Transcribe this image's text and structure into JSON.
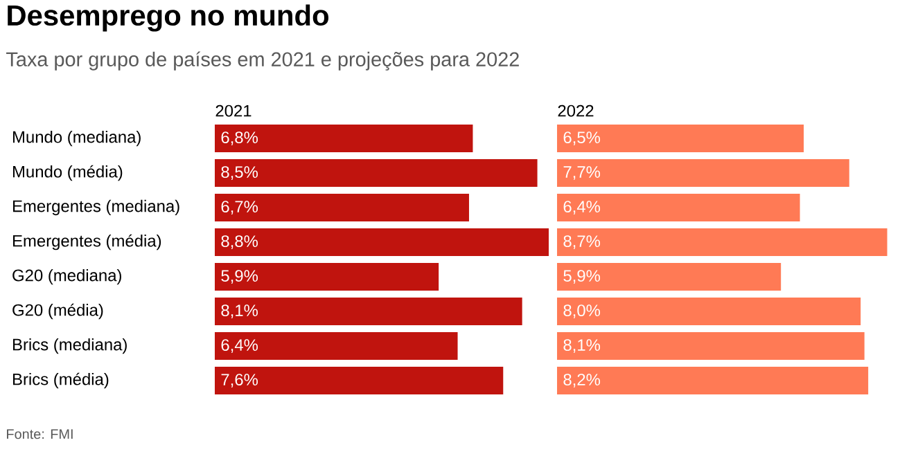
{
  "chart_data": [
    {
      "type": "bar",
      "orientation": "horizontal",
      "title": "Desemprego no mundo",
      "subtitle": "Taxa por grupo de países em 2021 e projeções para 2022",
      "categories": [
        "Mundo (mediana)",
        "Mundo (média)",
        "Emergentes (mediana)",
        "Emergentes (média)",
        "G20 (mediana)",
        "G20 (média)",
        "Brics (mediana)",
        "Brics (média)"
      ],
      "series": [
        {
          "name": "2021",
          "color": "#c0140e",
          "values": [
            6.8,
            8.5,
            6.7,
            8.8,
            5.9,
            8.1,
            6.4,
            7.6
          ],
          "value_labels": [
            "6,8%",
            "8,5%",
            "6,7%",
            "8,8%",
            "5,9%",
            "8,1%",
            "6,4%",
            "7,6%"
          ]
        }
      ],
      "annotations": [
        "Fonte: FMI"
      ]
    },
    {
      "type": "bar",
      "orientation": "horizontal",
      "categories": [
        null,
        null,
        null,
        null,
        null,
        null,
        null,
        null
      ],
      "series": [
        {
          "name": "2022",
          "color": "#ff7a55",
          "values": [
            6.5,
            7.7,
            6.4,
            8.7,
            5.9,
            8.0,
            8.1,
            8.2
          ],
          "value_labels": [
            "6,5%",
            "7,7%",
            "6,4%",
            "8,7%",
            "5,9%",
            "8,0%",
            "8,1%",
            "8,2%"
          ]
        }
      ]
    }
  ]
}
